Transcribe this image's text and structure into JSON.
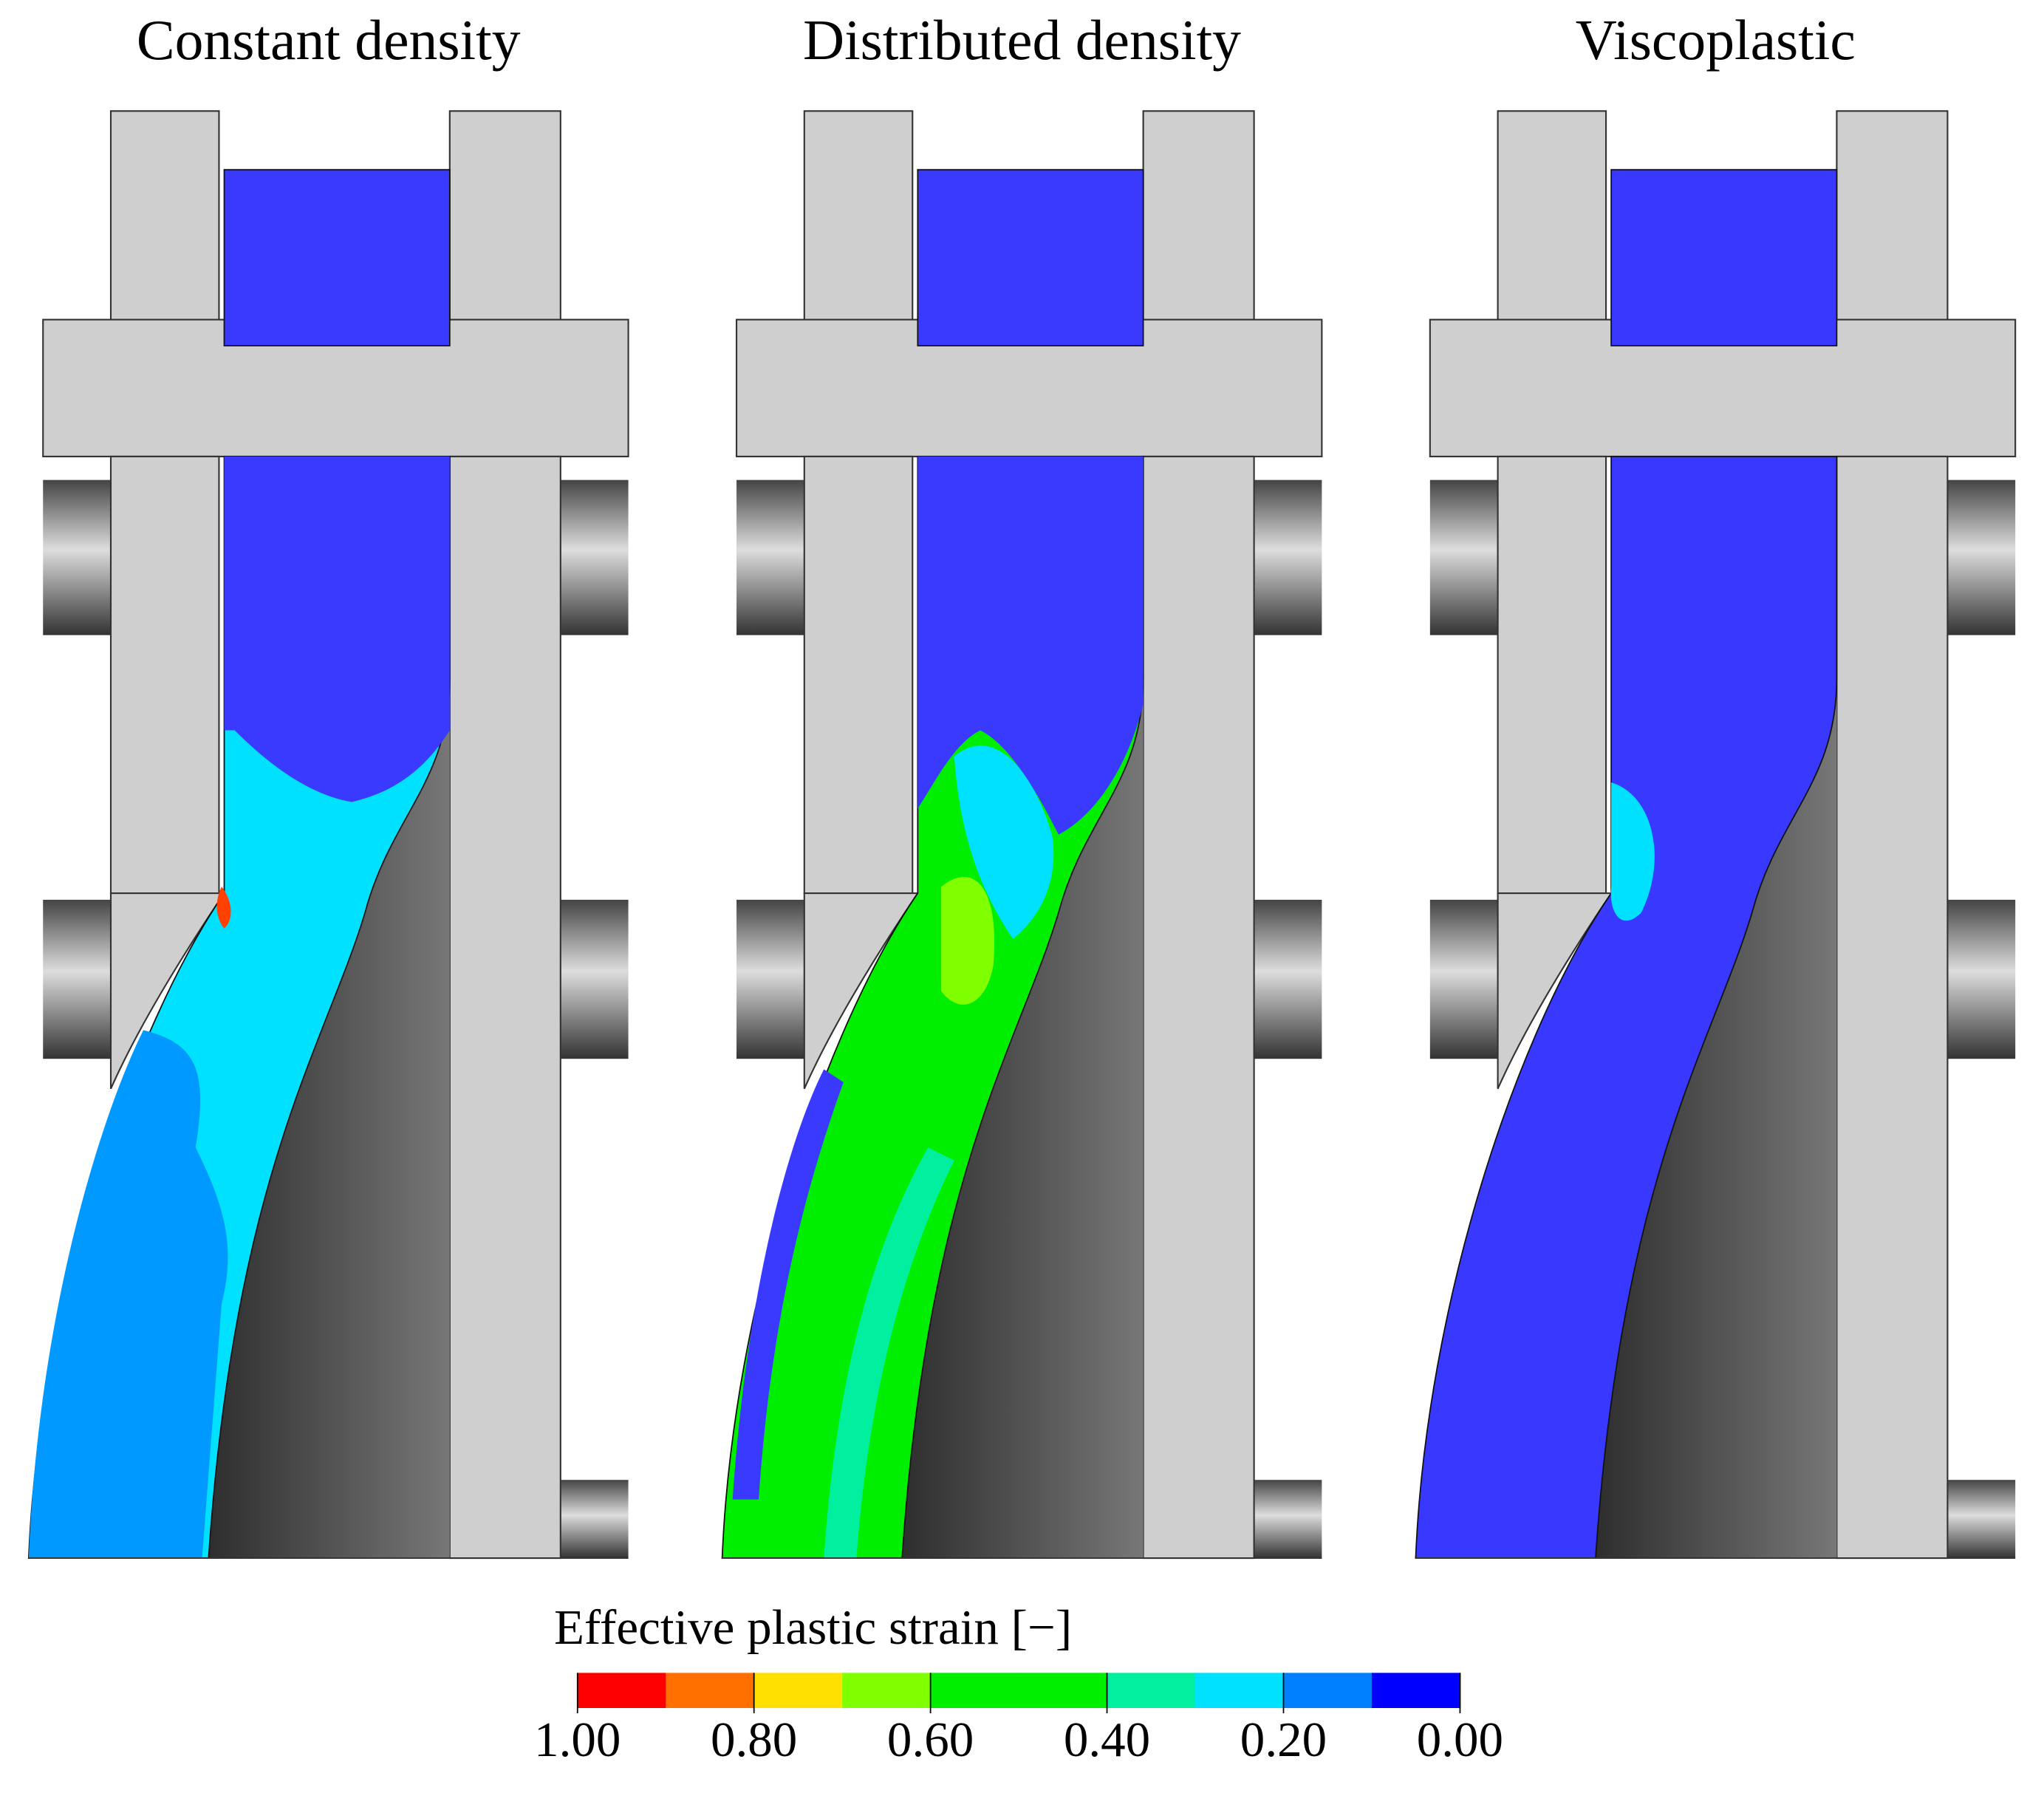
{
  "panels": [
    {
      "title": "Constant density"
    },
    {
      "title": "Distributed density"
    },
    {
      "title": "Viscoplastic"
    }
  ],
  "colorbar": {
    "title": "Effective plastic strain [−]",
    "lim": [
      1,
      0
    ],
    "ticks": [
      {
        "value": 1,
        "label": "1.00"
      },
      {
        "value": 0.8,
        "label": "0.80"
      },
      {
        "value": 0.6,
        "label": "0.60"
      },
      {
        "value": 0.4,
        "label": "0.40"
      },
      {
        "value": 0.2,
        "label": "0.20"
      },
      {
        "value": 0,
        "label": "0.00"
      }
    ],
    "colors": [
      "#ff0000",
      "#ff7000",
      "#ffe000",
      "#80ff00",
      "#00ee00",
      "#00ee00",
      "#00f0a0",
      "#00e0ff",
      "#0080ff",
      "#0000ff"
    ]
  }
}
